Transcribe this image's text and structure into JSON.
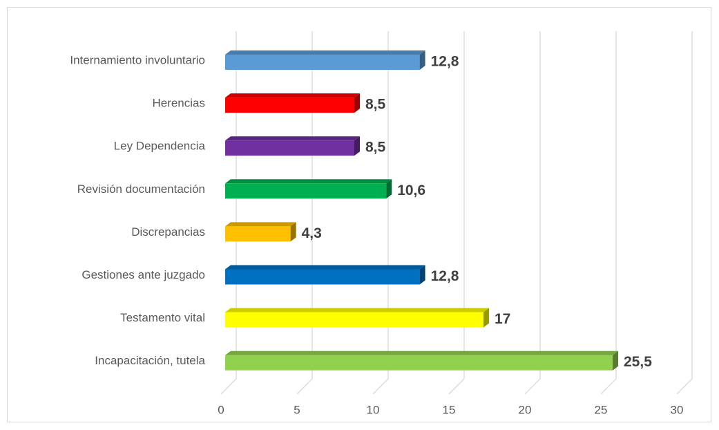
{
  "chart_data": {
    "type": "bar3d_horizontal",
    "categories": [
      "Internamiento involuntario",
      "Herencias",
      "Ley Dependencia",
      "Revisión documentación",
      "Discrepancias",
      "Gestiones ante juzgado",
      "Testamento vital",
      "Incapacitación, tutela"
    ],
    "values": [
      12.8,
      8.5,
      8.5,
      10.6,
      4.3,
      12.8,
      17,
      25.5
    ],
    "value_labels": [
      "12,8",
      "8,5",
      "8,5",
      "10,6",
      "4,3",
      "12,8",
      "17",
      "25,5"
    ],
    "colors": [
      "#5b9bd5",
      "#ff0000",
      "#7030a0",
      "#00b050",
      "#ffc000",
      "#0070c0",
      "#ffff00",
      "#92d050"
    ],
    "xlim": [
      0,
      30
    ],
    "xticks": [
      0,
      5,
      10,
      15,
      20,
      25,
      30
    ],
    "grid": true
  }
}
